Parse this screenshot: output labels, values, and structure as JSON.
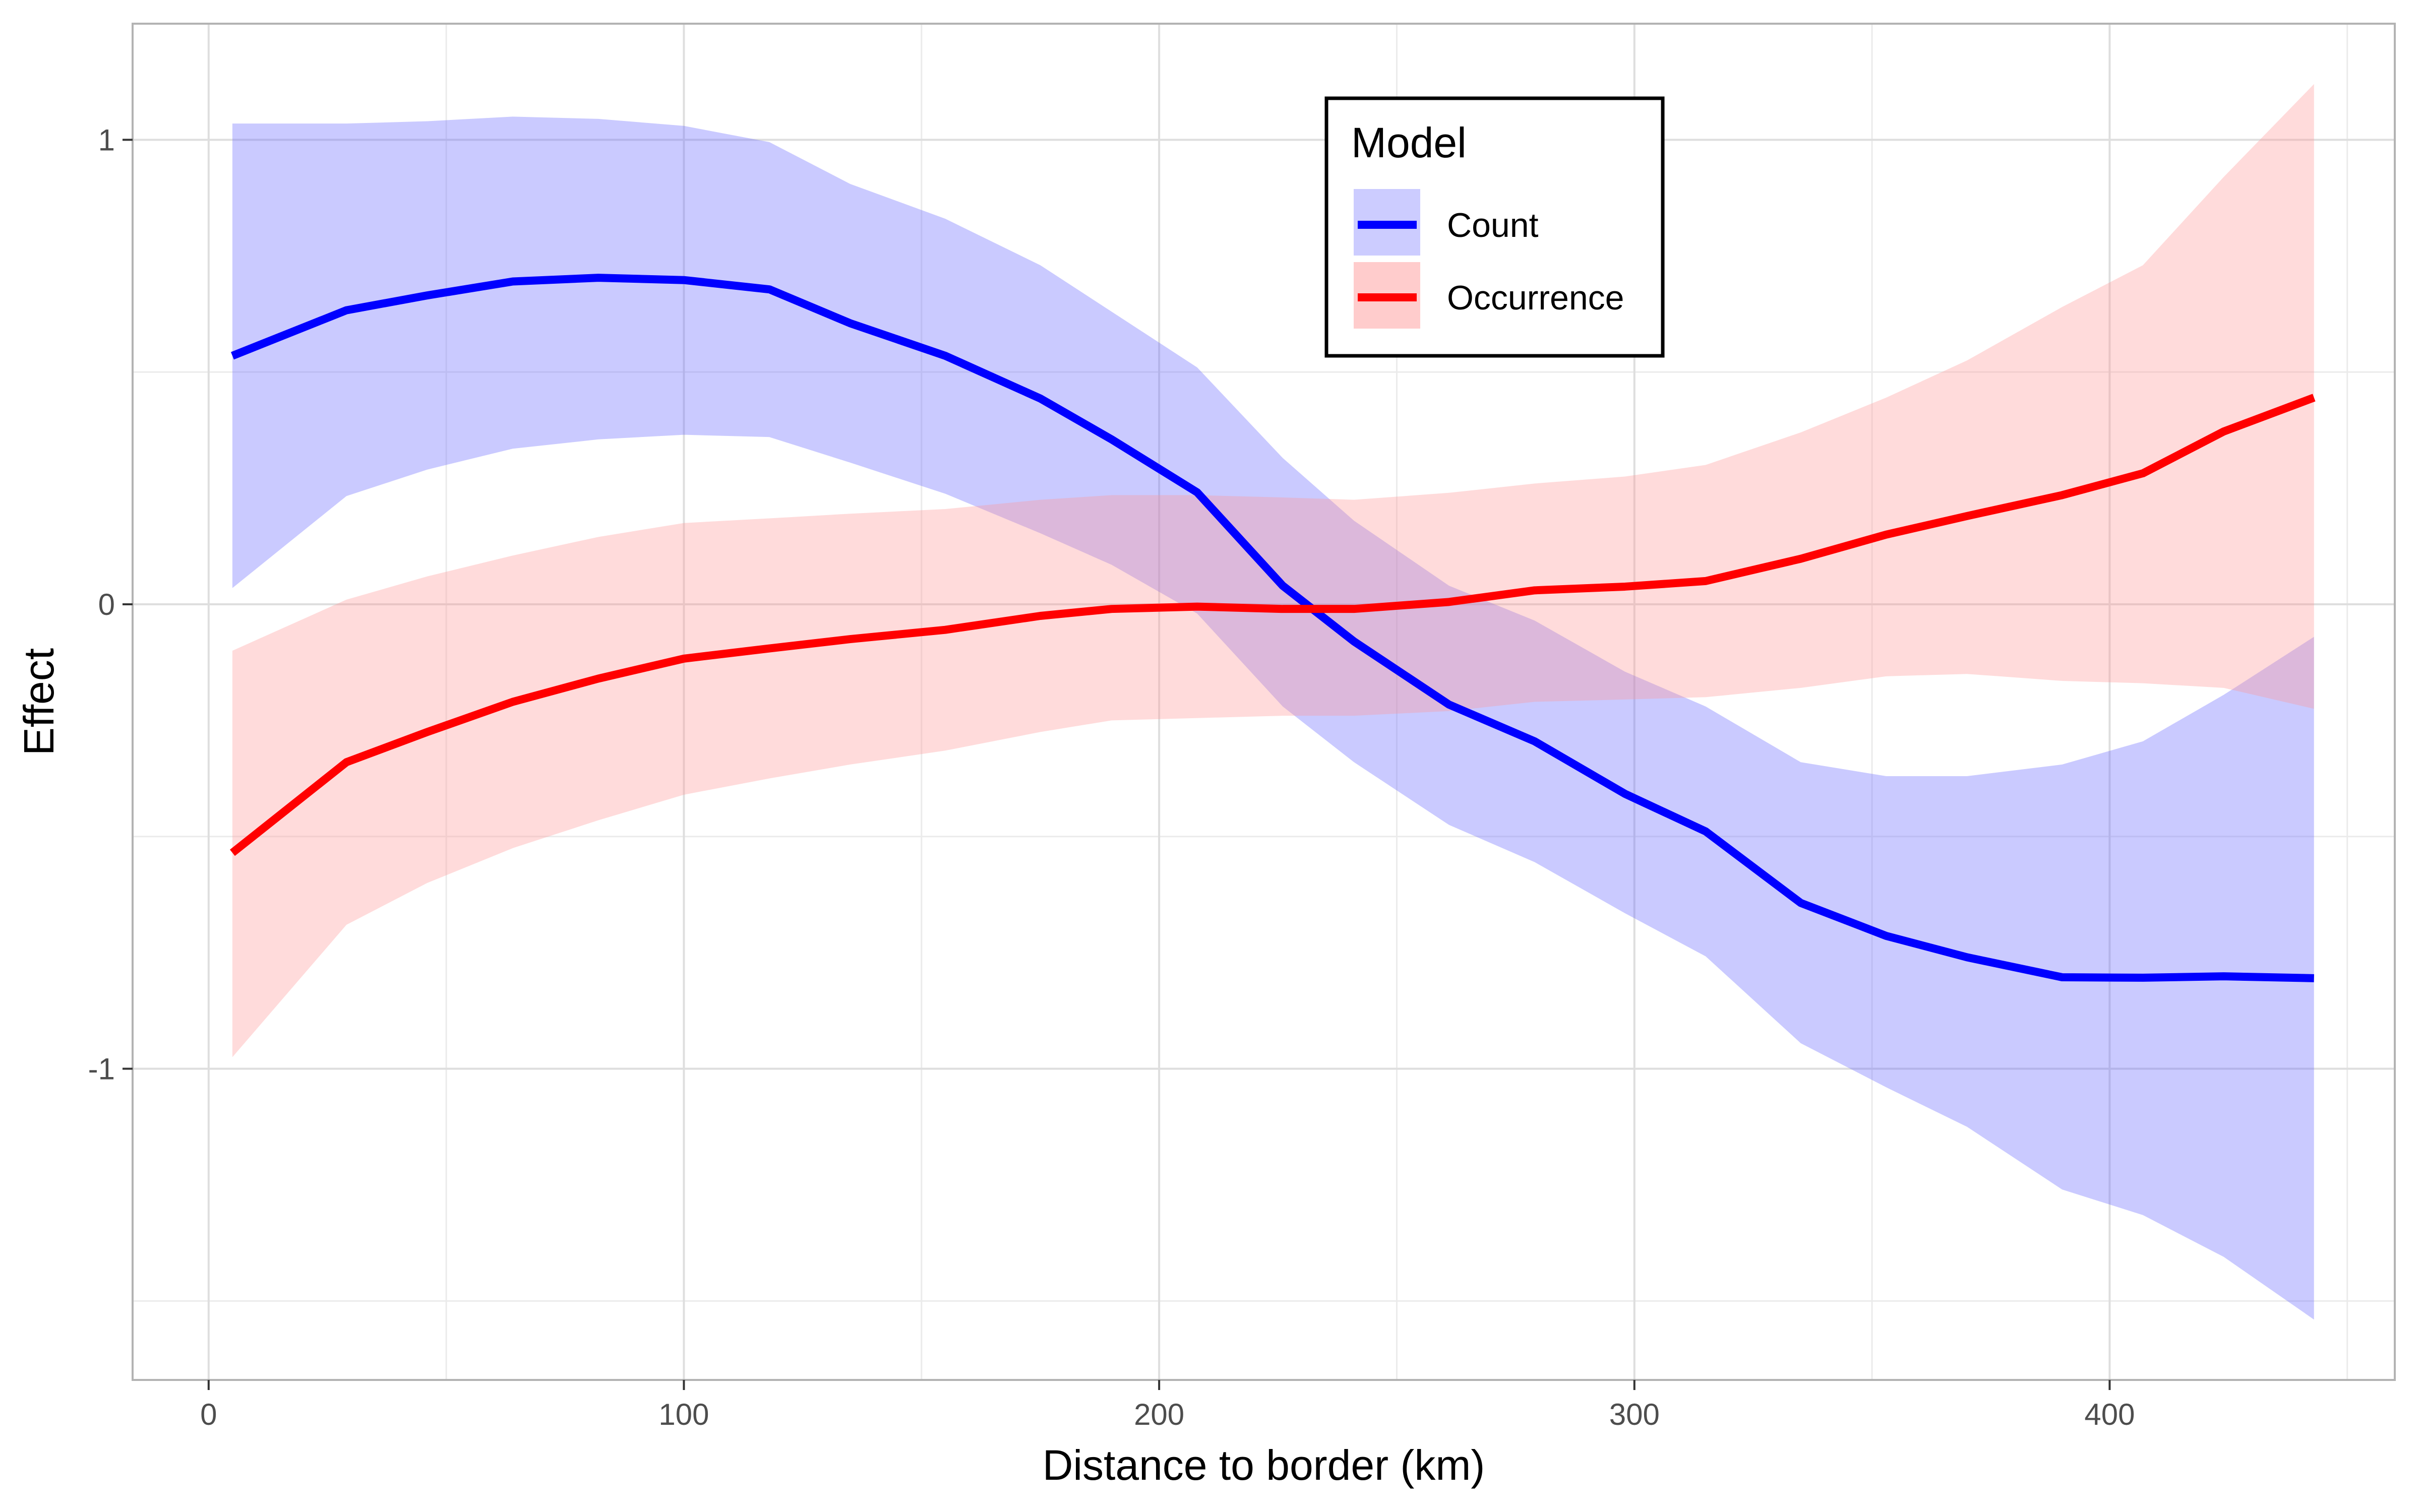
{
  "chart_data": {
    "type": "line",
    "title": "",
    "xlabel": "Distance to border (km)",
    "ylabel": "Effect",
    "xlim": [
      -16,
      460
    ],
    "ylim": [
      -1.67,
      1.25
    ],
    "xticks": [
      0,
      100,
      200,
      300,
      400
    ],
    "yticks": [
      -1,
      0,
      1
    ],
    "x_tick_labels": [
      "0",
      "100",
      "200",
      "300",
      "400"
    ],
    "y_tick_labels": [
      "-1",
      "0",
      "1"
    ],
    "x_minor_gridlines": [
      50,
      150,
      250,
      350,
      450
    ],
    "y_minor_gridlines": [
      -1.5,
      -0.5,
      0.5
    ],
    "grid": true,
    "legend": {
      "title": "Model",
      "placement": "top-center"
    },
    "series": [
      {
        "name": "Count",
        "color": "#0000ff",
        "band_color": "#6666ff",
        "x": [
          5,
          29,
          46,
          64,
          82,
          100,
          118,
          135,
          155,
          175,
          190,
          208,
          226,
          241,
          261,
          279,
          298,
          315,
          335,
          353,
          370,
          390,
          407,
          424,
          443
        ],
        "y": [
          0.535,
          0.633,
          0.665,
          0.695,
          0.703,
          0.698,
          0.678,
          0.605,
          0.535,
          0.443,
          0.355,
          0.241,
          0.04,
          -0.08,
          -0.216,
          -0.295,
          -0.408,
          -0.489,
          -0.643,
          -0.714,
          -0.76,
          -0.803,
          -0.804,
          -0.801,
          -0.805
        ],
        "lower": [
          0.035,
          0.233,
          0.29,
          0.335,
          0.355,
          0.365,
          0.36,
          0.305,
          0.238,
          0.153,
          0.085,
          -0.02,
          -0.22,
          -0.34,
          -0.475,
          -0.555,
          -0.665,
          -0.758,
          -0.945,
          -1.04,
          -1.125,
          -1.26,
          -1.315,
          -1.405,
          -1.54
        ],
        "upper": [
          1.035,
          1.035,
          1.04,
          1.05,
          1.045,
          1.03,
          0.995,
          0.905,
          0.83,
          0.73,
          0.63,
          0.51,
          0.315,
          0.18,
          0.04,
          -0.035,
          -0.145,
          -0.22,
          -0.34,
          -0.37,
          -0.37,
          -0.345,
          -0.295,
          -0.195,
          -0.07
        ]
      },
      {
        "name": "Occurrence",
        "color": "#ff0000",
        "band_color": "#ff9999",
        "x": [
          5,
          29,
          46,
          64,
          82,
          100,
          118,
          135,
          155,
          175,
          190,
          208,
          226,
          241,
          261,
          279,
          298,
          315,
          335,
          353,
          370,
          390,
          407,
          424,
          443
        ],
        "y": [
          -0.535,
          -0.34,
          -0.275,
          -0.21,
          -0.16,
          -0.117,
          -0.095,
          -0.075,
          -0.055,
          -0.025,
          -0.01,
          -0.005,
          -0.01,
          -0.01,
          0.005,
          0.03,
          0.038,
          0.05,
          0.098,
          0.15,
          0.19,
          0.235,
          0.282,
          0.372,
          0.445
        ],
        "lower": [
          -0.975,
          -0.69,
          -0.6,
          -0.525,
          -0.465,
          -0.41,
          -0.375,
          -0.345,
          -0.315,
          -0.275,
          -0.25,
          -0.245,
          -0.24,
          -0.24,
          -0.23,
          -0.21,
          -0.205,
          -0.2,
          -0.18,
          -0.155,
          -0.15,
          -0.165,
          -0.17,
          -0.18,
          -0.225
        ],
        "upper": [
          -0.1,
          0.01,
          0.06,
          0.105,
          0.145,
          0.175,
          0.185,
          0.195,
          0.205,
          0.225,
          0.235,
          0.235,
          0.23,
          0.225,
          0.24,
          0.26,
          0.275,
          0.3,
          0.37,
          0.445,
          0.525,
          0.64,
          0.73,
          0.92,
          1.12
        ]
      }
    ]
  }
}
